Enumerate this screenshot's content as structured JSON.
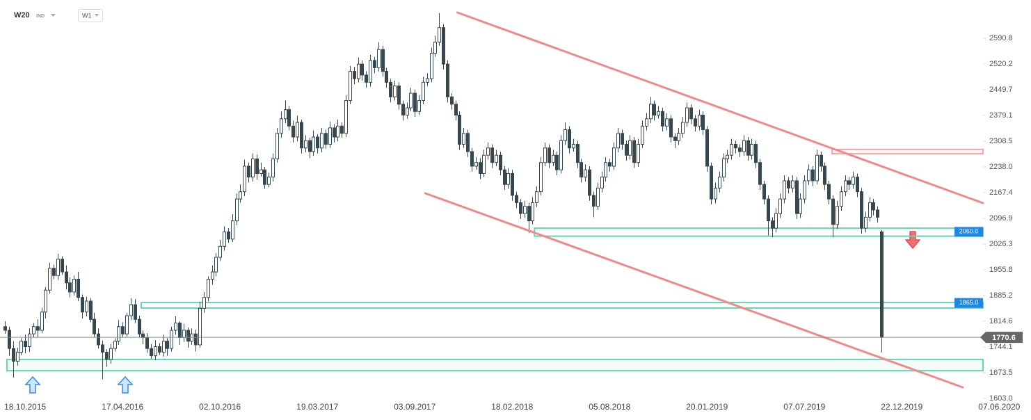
{
  "header": {
    "symbol": "W20",
    "class": "IND",
    "interval": "W1"
  },
  "chart_data": {
    "type": "candlestick",
    "colors": {
      "candle": "#37474f",
      "up_fill": "#ffffff",
      "trend": "#ef8a8a",
      "zone": "#66d4b4",
      "label": "#1e88e5",
      "last": "#666666"
    },
    "xlim": [
      -1.2,
      241
    ],
    "ylim": [
      1603,
      2695.7
    ],
    "xticks": [
      {
        "value": 5,
        "label": "18.10.2015"
      },
      {
        "value": 29,
        "label": "17.04.2016"
      },
      {
        "value": 53,
        "label": "02.10.2016"
      },
      {
        "value": 77,
        "label": "19.03.2017"
      },
      {
        "value": 101,
        "label": "03.09.2017"
      },
      {
        "value": 125,
        "label": "18.02.2018"
      },
      {
        "value": 149,
        "label": "05.08.2018"
      },
      {
        "value": 173,
        "label": "20.01.2019"
      },
      {
        "value": 197,
        "label": "07.07.2019"
      },
      {
        "value": 221,
        "label": "22.12.2019"
      },
      {
        "value": 245,
        "label": "07.06.2020"
      }
    ],
    "yticks": [
      2590.8,
      2520.2,
      2449.7,
      2379.1,
      2308.5,
      {
        "value": 2238,
        "label": "2238.0"
      },
      2167.4,
      2096.9,
      2026.3,
      1955.8,
      1885.2,
      1814.6,
      1744.1,
      1673.5,
      {
        "value": 1603,
        "label": "1603.0"
      }
    ],
    "candles": [
      [
        1800,
        1815,
        1780,
        1790
      ],
      [
        1790,
        1800,
        1720,
        1740
      ],
      [
        1740,
        1760,
        1660,
        1705
      ],
      [
        1705,
        1742,
        1693,
        1730
      ],
      [
        1730,
        1768,
        1722,
        1760
      ],
      [
        1760,
        1778,
        1727,
        1745
      ],
      [
        1745,
        1795,
        1730,
        1780
      ],
      [
        1780,
        1810,
        1770,
        1800
      ],
      [
        1800,
        1820,
        1770,
        1790
      ],
      [
        1790,
        1852,
        1782,
        1840
      ],
      [
        1840,
        1908,
        1822,
        1900
      ],
      [
        1900,
        1975,
        1890,
        1960
      ],
      [
        1960,
        1970,
        1930,
        1940
      ],
      [
        1940,
        2000,
        1928,
        1985
      ],
      [
        1985,
        1993,
        1942,
        1950
      ],
      [
        1950,
        1968,
        1902,
        1920
      ],
      [
        1920,
        1935,
        1880,
        1895
      ],
      [
        1895,
        1940,
        1885,
        1930
      ],
      [
        1930,
        1950,
        1870,
        1880
      ],
      [
        1880,
        1888,
        1822,
        1840
      ],
      [
        1840,
        1882,
        1828,
        1870
      ],
      [
        1870,
        1878,
        1812,
        1820
      ],
      [
        1820,
        1838,
        1770,
        1780
      ],
      [
        1780,
        1795,
        1740,
        1750
      ],
      [
        1750,
        1762,
        1656,
        1730
      ],
      [
        1730,
        1738,
        1690,
        1710
      ],
      [
        1710,
        1752,
        1698,
        1740
      ],
      [
        1740,
        1768,
        1732,
        1760
      ],
      [
        1760,
        1818,
        1750,
        1800
      ],
      [
        1800,
        1812,
        1770,
        1780
      ],
      [
        1780,
        1838,
        1772,
        1830
      ],
      [
        1830,
        1878,
        1818,
        1860
      ],
      [
        1860,
        1875,
        1810,
        1820
      ],
      [
        1820,
        1830,
        1770,
        1780
      ],
      [
        1780,
        1790,
        1752,
        1770
      ],
      [
        1770,
        1782,
        1728,
        1740
      ],
      [
        1740,
        1752,
        1712,
        1720
      ],
      [
        1720,
        1763,
        1708,
        1745
      ],
      [
        1745,
        1755,
        1722,
        1730
      ],
      [
        1730,
        1778,
        1718,
        1760
      ],
      [
        1760,
        1768,
        1720,
        1740
      ],
      [
        1740,
        1800,
        1732,
        1790
      ],
      [
        1790,
        1828,
        1778,
        1810
      ],
      [
        1810,
        1815,
        1750,
        1770
      ],
      [
        1770,
        1808,
        1758,
        1790
      ],
      [
        1790,
        1798,
        1742,
        1760
      ],
      [
        1760,
        1795,
        1750,
        1780
      ],
      [
        1780,
        1792,
        1732,
        1750
      ],
      [
        1750,
        1868,
        1742,
        1850
      ],
      [
        1850,
        1895,
        1838,
        1880
      ],
      [
        1880,
        1938,
        1870,
        1930
      ],
      [
        1930,
        1968,
        1915,
        1950
      ],
      [
        1950,
        2002,
        1938,
        1990
      ],
      [
        1990,
        2038,
        1980,
        2020
      ],
      [
        2020,
        2075,
        2008,
        2060
      ],
      [
        2060,
        2070,
        2030,
        2040
      ],
      [
        2040,
        2108,
        2032,
        2090
      ],
      [
        2090,
        2165,
        2078,
        2150
      ],
      [
        2150,
        2190,
        2140,
        2170
      ],
      [
        2170,
        2258,
        2158,
        2240
      ],
      [
        2240,
        2250,
        2195,
        2210
      ],
      [
        2210,
        2275,
        2198,
        2260
      ],
      [
        2260,
        2272,
        2202,
        2220
      ],
      [
        2220,
        2250,
        2212,
        2230
      ],
      [
        2230,
        2238,
        2178,
        2190
      ],
      [
        2190,
        2222,
        2182,
        2210
      ],
      [
        2210,
        2275,
        2198,
        2260
      ],
      [
        2260,
        2345,
        2250,
        2330
      ],
      [
        2330,
        2390,
        2318,
        2370
      ],
      [
        2370,
        2420,
        2358,
        2395
      ],
      [
        2395,
        2405,
        2338,
        2350
      ],
      [
        2350,
        2365,
        2305,
        2320
      ],
      [
        2320,
        2378,
        2308,
        2360
      ],
      [
        2360,
        2368,
        2275,
        2290
      ],
      [
        2290,
        2325,
        2278,
        2310
      ],
      [
        2310,
        2318,
        2262,
        2280
      ],
      [
        2280,
        2338,
        2268,
        2320
      ],
      [
        2320,
        2328,
        2275,
        2290
      ],
      [
        2290,
        2345,
        2278,
        2330
      ],
      [
        2330,
        2340,
        2288,
        2300
      ],
      [
        2300,
        2362,
        2290,
        2345
      ],
      [
        2345,
        2355,
        2305,
        2320
      ],
      [
        2320,
        2368,
        2308,
        2350
      ],
      [
        2350,
        2360,
        2318,
        2330
      ],
      [
        2330,
        2435,
        2320,
        2420
      ],
      [
        2420,
        2515,
        2410,
        2500
      ],
      [
        2500,
        2512,
        2465,
        2480
      ],
      [
        2480,
        2538,
        2470,
        2520
      ],
      [
        2520,
        2530,
        2475,
        2490
      ],
      [
        2490,
        2500,
        2455,
        2470
      ],
      [
        2470,
        2545,
        2458,
        2530
      ],
      [
        2530,
        2540,
        2495,
        2510
      ],
      [
        2510,
        2580,
        2500,
        2560
      ],
      [
        2560,
        2570,
        2485,
        2500
      ],
      [
        2500,
        2510,
        2455,
        2470
      ],
      [
        2470,
        2480,
        2415,
        2430
      ],
      [
        2430,
        2475,
        2420,
        2460
      ],
      [
        2460,
        2470,
        2395,
        2410
      ],
      [
        2410,
        2420,
        2365,
        2380
      ],
      [
        2380,
        2415,
        2370,
        2400
      ],
      [
        2400,
        2455,
        2390,
        2440
      ],
      [
        2440,
        2450,
        2375,
        2390
      ],
      [
        2390,
        2435,
        2380,
        2420
      ],
      [
        2420,
        2485,
        2410,
        2470
      ],
      [
        2470,
        2495,
        2460,
        2480
      ],
      [
        2480,
        2565,
        2470,
        2550
      ],
      [
        2550,
        2598,
        2540,
        2580
      ],
      [
        2580,
        2660,
        2570,
        2620
      ],
      [
        2620,
        2630,
        2505,
        2520
      ],
      [
        2520,
        2530,
        2415,
        2430
      ],
      [
        2430,
        2440,
        2395,
        2410
      ],
      [
        2410,
        2420,
        2365,
        2380
      ],
      [
        2380,
        2390,
        2285,
        2300
      ],
      [
        2300,
        2345,
        2290,
        2330
      ],
      [
        2330,
        2340,
        2265,
        2280
      ],
      [
        2280,
        2290,
        2225,
        2240
      ],
      [
        2240,
        2265,
        2230,
        2250
      ],
      [
        2250,
        2262,
        2205,
        2220
      ],
      [
        2220,
        2285,
        2210,
        2270
      ],
      [
        2270,
        2305,
        2258,
        2290
      ],
      [
        2290,
        2300,
        2235,
        2250
      ],
      [
        2250,
        2285,
        2240,
        2270
      ],
      [
        2270,
        2280,
        2215,
        2230
      ],
      [
        2230,
        2240,
        2175,
        2190
      ],
      [
        2190,
        2235,
        2178,
        2220
      ],
      [
        2220,
        2230,
        2145,
        2160
      ],
      [
        2160,
        2170,
        2125,
        2140
      ],
      [
        2140,
        2150,
        2095,
        2110
      ],
      [
        2110,
        2145,
        2098,
        2130
      ],
      [
        2130,
        2140,
        2057,
        2090
      ],
      [
        2090,
        2155,
        2080,
        2140
      ],
      [
        2140,
        2185,
        2128,
        2170
      ],
      [
        2170,
        2265,
        2160,
        2250
      ],
      [
        2250,
        2305,
        2240,
        2290
      ],
      [
        2290,
        2300,
        2235,
        2250
      ],
      [
        2250,
        2285,
        2240,
        2270
      ],
      [
        2270,
        2280,
        2215,
        2230
      ],
      [
        2230,
        2325,
        2220,
        2310
      ],
      [
        2310,
        2360,
        2298,
        2340
      ],
      [
        2340,
        2350,
        2275,
        2290
      ],
      [
        2290,
        2315,
        2280,
        2300
      ],
      [
        2300,
        2310,
        2235,
        2250
      ],
      [
        2250,
        2260,
        2195,
        2210
      ],
      [
        2210,
        2245,
        2198,
        2230
      ],
      [
        2230,
        2240,
        2145,
        2160
      ],
      [
        2160,
        2170,
        2100,
        2130
      ],
      [
        2130,
        2195,
        2120,
        2180
      ],
      [
        2180,
        2225,
        2168,
        2210
      ],
      [
        2210,
        2265,
        2198,
        2250
      ],
      [
        2250,
        2260,
        2225,
        2240
      ],
      [
        2240,
        2305,
        2230,
        2290
      ],
      [
        2290,
        2345,
        2278,
        2330
      ],
      [
        2330,
        2340,
        2285,
        2300
      ],
      [
        2300,
        2310,
        2255,
        2270
      ],
      [
        2270,
        2325,
        2258,
        2310
      ],
      [
        2310,
        2320,
        2235,
        2250
      ],
      [
        2250,
        2315,
        2238,
        2300
      ],
      [
        2300,
        2365,
        2290,
        2350
      ],
      [
        2350,
        2385,
        2338,
        2370
      ],
      [
        2370,
        2430,
        2358,
        2410
      ],
      [
        2410,
        2420,
        2365,
        2380
      ],
      [
        2380,
        2405,
        2370,
        2390
      ],
      [
        2390,
        2400,
        2335,
        2350
      ],
      [
        2350,
        2385,
        2338,
        2370
      ],
      [
        2370,
        2380,
        2305,
        2320
      ],
      [
        2320,
        2330,
        2290,
        2310
      ],
      [
        2310,
        2345,
        2298,
        2330
      ],
      [
        2330,
        2375,
        2318,
        2360
      ],
      [
        2360,
        2415,
        2348,
        2400
      ],
      [
        2400,
        2410,
        2355,
        2370
      ],
      [
        2370,
        2380,
        2335,
        2350
      ],
      [
        2350,
        2395,
        2338,
        2380
      ],
      [
        2380,
        2390,
        2325,
        2340
      ],
      [
        2340,
        2350,
        2225,
        2240
      ],
      [
        2240,
        2250,
        2135,
        2150
      ],
      [
        2150,
        2195,
        2138,
        2180
      ],
      [
        2180,
        2225,
        2168,
        2210
      ],
      [
        2210,
        2275,
        2198,
        2260
      ],
      [
        2260,
        2285,
        2248,
        2270
      ],
      [
        2270,
        2315,
        2258,
        2300
      ],
      [
        2300,
        2310,
        2275,
        2290
      ],
      [
        2290,
        2300,
        2265,
        2280
      ],
      [
        2280,
        2325,
        2268,
        2310
      ],
      [
        2310,
        2320,
        2255,
        2270
      ],
      [
        2270,
        2315,
        2258,
        2300
      ],
      [
        2300,
        2310,
        2235,
        2250
      ],
      [
        2250,
        2260,
        2175,
        2190
      ],
      [
        2190,
        2200,
        2135,
        2150
      ],
      [
        2150,
        2160,
        2050,
        2090
      ],
      [
        2090,
        2100,
        2045,
        2070
      ],
      [
        2070,
        2125,
        2058,
        2110
      ],
      [
        2110,
        2165,
        2098,
        2150
      ],
      [
        2150,
        2215,
        2138,
        2200
      ],
      [
        2200,
        2210,
        2165,
        2180
      ],
      [
        2180,
        2215,
        2168,
        2200
      ],
      [
        2200,
        2210,
        2095,
        2110
      ],
      [
        2110,
        2165,
        2098,
        2150
      ],
      [
        2150,
        2215,
        2138,
        2200
      ],
      [
        2200,
        2245,
        2188,
        2230
      ],
      [
        2230,
        2240,
        2185,
        2200
      ],
      [
        2200,
        2285,
        2190,
        2270
      ],
      [
        2270,
        2280,
        2225,
        2240
      ],
      [
        2240,
        2250,
        2175,
        2190
      ],
      [
        2190,
        2200,
        2135,
        2150
      ],
      [
        2150,
        2160,
        2045,
        2080
      ],
      [
        2080,
        2145,
        2068,
        2130
      ],
      [
        2130,
        2185,
        2118,
        2170
      ],
      [
        2170,
        2215,
        2158,
        2200
      ],
      [
        2200,
        2210,
        2175,
        2190
      ],
      [
        2190,
        2225,
        2178,
        2210
      ],
      [
        2210,
        2220,
        2155,
        2170
      ],
      [
        2170,
        2180,
        2055,
        2070
      ],
      [
        2070,
        2115,
        2058,
        2100
      ],
      [
        2100,
        2155,
        2088,
        2140
      ],
      [
        2140,
        2150,
        2105,
        2120
      ],
      [
        2120,
        2130,
        2085,
        2100
      ],
      [
        2060,
        2065,
        1729,
        1770.6
      ]
    ],
    "levels": [
      {
        "value": 2060,
        "label": "2060.0",
        "top": 2070,
        "bottom": 2048,
        "start": 130.5
      },
      {
        "value": 1865,
        "label": "1865.0",
        "top": 1866,
        "bottom": 1851,
        "start": 33.6
      }
    ],
    "zones": [
      {
        "top": 1710,
        "bottom": 1679,
        "start": 0.5,
        "color": "#66d4b4"
      },
      {
        "top": 2286,
        "bottom": 2274,
        "start": 203.8,
        "color": "#f2a5a5"
      }
    ],
    "trendlines": [
      {
        "x": [
          111.5,
          241
        ],
        "y": [
          2661.4,
          2138.9
        ]
      },
      {
        "x": [
          103.6,
          236
        ],
        "y": [
          2165.6,
          1633.5
        ]
      }
    ]
  }
}
